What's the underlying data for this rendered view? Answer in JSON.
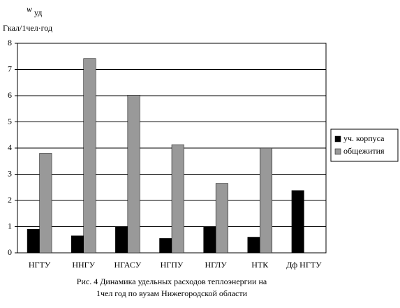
{
  "chart_data": {
    "type": "bar",
    "y_label_symbol": "w",
    "y_label_subscript": "уд",
    "y_label_unit": "Гкал/1чел·год",
    "categories": [
      "НГТУ",
      "ННГУ",
      "НГАСУ",
      "НГПУ",
      "НГЛУ",
      "НТК",
      "Дф НГТУ"
    ],
    "series": [
      {
        "name": "уч. корпуса",
        "color": "#000000",
        "values": [
          0.9,
          0.65,
          1.0,
          0.55,
          1.0,
          0.6,
          2.38
        ]
      },
      {
        "name": "общежития",
        "color": "#999999",
        "values": [
          3.8,
          7.42,
          6.02,
          4.13,
          2.65,
          4.0,
          null
        ]
      }
    ],
    "ylim": [
      0,
      8
    ],
    "yticks": [
      0,
      1,
      2,
      3,
      4,
      5,
      6,
      7,
      8
    ],
    "grid": true,
    "legend": "right",
    "caption": [
      "Рис. 4 Динамика удельных расходов теплоэнергии на",
      "1чел год по вузам Нижегородской области"
    ]
  }
}
